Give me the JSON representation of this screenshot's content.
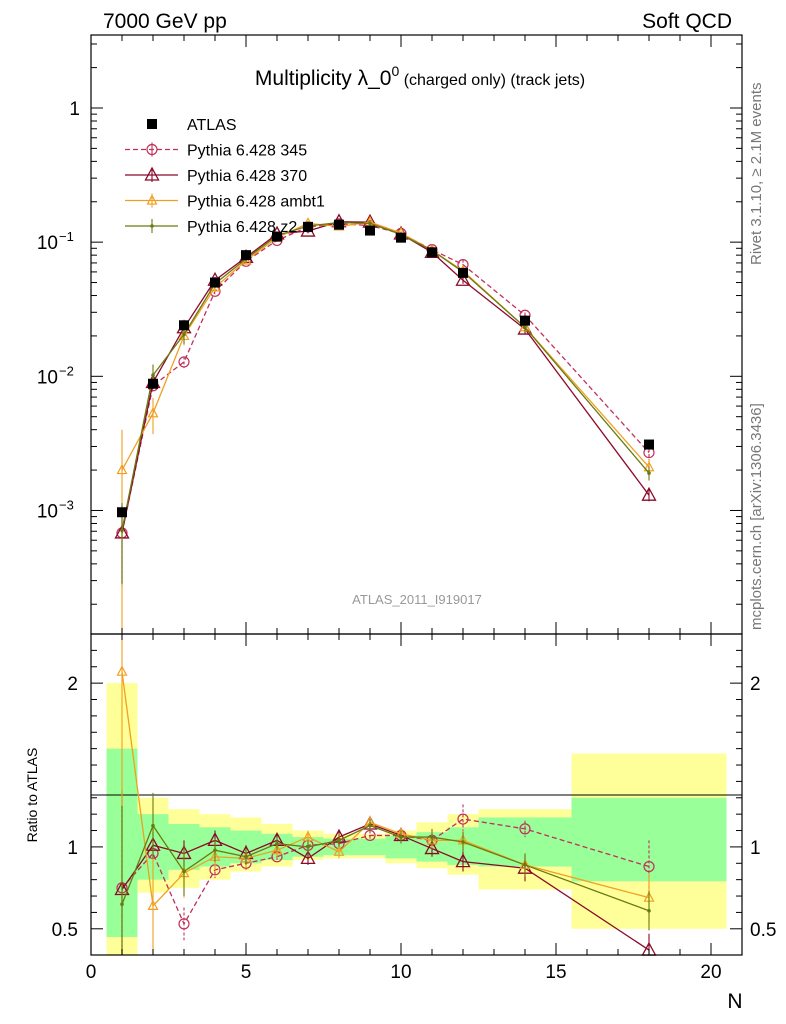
{
  "header": {
    "left": "7000 GeV pp",
    "right": "Soft QCD"
  },
  "side": {
    "rivet": "Rivet 3.1.10, ≥ 2.1M events",
    "mcplots": "mcplots.cern.ch [arXiv:1306.3436]"
  },
  "chart_data": {
    "type": "line",
    "title": "Multiplicity λ_0⁰ (charged only) (track jets)",
    "title_main": "Multiplicity λ_0",
    "title_sup": "0",
    "title_tail": " (charged only) (track jets)",
    "analysis": "ATLAS_2011_I919017",
    "xlabel": "N",
    "ylabel_ratio": "Ratio to ATLAS",
    "log_y": true,
    "xlim": [
      0,
      21
    ],
    "ylim": [
      0.00012,
      3.5
    ],
    "ratio_ylim": [
      0.34,
      2.3
    ],
    "x_ticks": [
      "0",
      "5",
      "10",
      "15",
      "20"
    ],
    "y_ticks_main": [
      {
        "v": 1,
        "base": "1",
        "exp": ""
      },
      {
        "v": 0.1,
        "base": "10",
        "exp": "−1"
      },
      {
        "v": 0.01,
        "base": "10",
        "exp": "−2"
      },
      {
        "v": 0.001,
        "base": "10",
        "exp": "−3"
      }
    ],
    "y_ticks_ratio": [
      "2",
      "1",
      "0.5"
    ],
    "atlas_x": [
      1,
      2,
      3,
      4,
      5,
      6,
      7,
      8,
      9,
      10,
      11,
      12,
      14,
      18
    ],
    "atlas_y": [
      0.00097,
      0.0088,
      0.024,
      0.05,
      0.08,
      0.11,
      0.13,
      0.135,
      0.122,
      0.108,
      0.084,
      0.059,
      0.026,
      0.0031
    ],
    "band_edges": [
      0.5,
      1.5,
      2.5,
      3.5,
      4.5,
      5.5,
      6.5,
      7.5,
      8.5,
      9.5,
      10.5,
      11.5,
      12.5,
      15.5,
      20.5
    ],
    "band_green": [
      [
        0.45,
        1.6
      ],
      [
        0.8,
        1.2
      ],
      [
        0.86,
        1.14
      ],
      [
        0.88,
        1.12
      ],
      [
        0.9,
        1.1
      ],
      [
        0.92,
        1.08
      ],
      [
        0.94,
        1.06
      ],
      [
        0.95,
        1.05
      ],
      [
        0.95,
        1.05
      ],
      [
        0.93,
        1.07
      ],
      [
        0.91,
        1.09
      ],
      [
        0.89,
        1.12
      ],
      [
        0.88,
        1.18
      ],
      [
        0.79,
        1.3
      ]
    ],
    "band_yellow": [
      [
        0.34,
        2.0
      ],
      [
        0.72,
        1.3
      ],
      [
        0.75,
        1.23
      ],
      [
        0.8,
        1.2
      ],
      [
        0.85,
        1.18
      ],
      [
        0.88,
        1.14
      ],
      [
        0.92,
        1.1
      ],
      [
        0.93,
        1.08
      ],
      [
        0.93,
        1.08
      ],
      [
        0.9,
        1.1
      ],
      [
        0.87,
        1.15
      ],
      [
        0.83,
        1.2
      ],
      [
        0.74,
        1.23
      ],
      [
        0.5,
        1.57
      ]
    ],
    "series": [
      {
        "name": "ATLAS",
        "color": "#000000",
        "marker": "square"
      },
      {
        "name": "Pythia 6.428 345",
        "color": "#c0305a",
        "marker": "circle",
        "dashed": true,
        "x": [
          1,
          2,
          3,
          4,
          5,
          6,
          7,
          8,
          9,
          10,
          11,
          12,
          14,
          18
        ],
        "y": [
          0.00068,
          0.0085,
          0.0128,
          0.043,
          0.072,
          0.103,
          0.13,
          0.137,
          0.133,
          0.116,
          0.088,
          0.068,
          0.0285,
          0.0027
        ],
        "ratio": [
          0.75,
          0.96,
          0.53,
          0.86,
          0.9,
          0.94,
          1.01,
          1.02,
          1.07,
          1.07,
          1.04,
          1.17,
          1.11,
          0.88
        ],
        "err": [
          0.6,
          0.06,
          0.1,
          0.05,
          0.04,
          0.03,
          0.03,
          0.03,
          0.03,
          0.03,
          0.04,
          0.09,
          0.05,
          0.16
        ]
      },
      {
        "name": "Pythia 6.428 370",
        "color": "#8b0a2a",
        "marker": "triangle",
        "dashed": false,
        "x": [
          1,
          2,
          3,
          4,
          5,
          6,
          7,
          8,
          9,
          10,
          11,
          12,
          14,
          18
        ],
        "y": [
          0.00068,
          0.009,
          0.023,
          0.052,
          0.077,
          0.115,
          0.121,
          0.142,
          0.141,
          0.115,
          0.084,
          0.052,
          0.0225,
          0.0013
        ],
        "ratio": [
          0.74,
          1.01,
          0.96,
          1.04,
          0.96,
          1.04,
          0.93,
          1.06,
          1.14,
          1.07,
          0.99,
          0.91,
          0.87,
          0.37
        ],
        "err": [
          0.6,
          0.08,
          0.08,
          0.06,
          0.05,
          0.04,
          0.04,
          0.04,
          0.04,
          0.04,
          0.05,
          0.06,
          0.08,
          0.1
        ]
      },
      {
        "name": "Pythia 6.428 ambt1",
        "color": "#f0a020",
        "marker": "triangle-small",
        "dashed": false,
        "x": [
          1,
          2,
          3,
          4,
          5,
          6,
          7,
          8,
          9,
          10,
          11,
          12,
          14,
          18
        ],
        "y": [
          0.002,
          0.0053,
          0.02,
          0.046,
          0.073,
          0.108,
          0.138,
          0.131,
          0.141,
          0.117,
          0.087,
          0.061,
          0.0232,
          0.0021
        ],
        "ratio": [
          2.07,
          0.64,
          0.84,
          0.94,
          0.93,
          0.98,
          1.06,
          0.97,
          1.15,
          1.08,
          1.04,
          1.04,
          0.89,
          0.69
        ],
        "err": [
          1.0,
          0.3,
          0.15,
          0.08,
          0.06,
          0.05,
          0.04,
          0.04,
          0.04,
          0.04,
          0.05,
          0.06,
          0.07,
          0.15
        ]
      },
      {
        "name": "Pythia 6.428 z2",
        "color": "#6b7a10",
        "marker": "dot",
        "dashed": false,
        "x": [
          1,
          2,
          3,
          4,
          5,
          6,
          7,
          8,
          9,
          10,
          11,
          12,
          14,
          18
        ],
        "y": [
          0.00071,
          0.0102,
          0.0205,
          0.049,
          0.075,
          0.112,
          0.132,
          0.14,
          0.138,
          0.114,
          0.087,
          0.06,
          0.0232,
          0.0019
        ],
        "ratio": [
          0.65,
          1.13,
          0.85,
          0.98,
          0.94,
          1.02,
          1.0,
          1.04,
          1.13,
          1.06,
          1.06,
          1.03,
          0.89,
          0.61
        ],
        "err": [
          0.6,
          0.2,
          0.15,
          0.07,
          0.05,
          0.04,
          0.04,
          0.04,
          0.04,
          0.04,
          0.05,
          0.06,
          0.07,
          0.12
        ]
      }
    ]
  }
}
